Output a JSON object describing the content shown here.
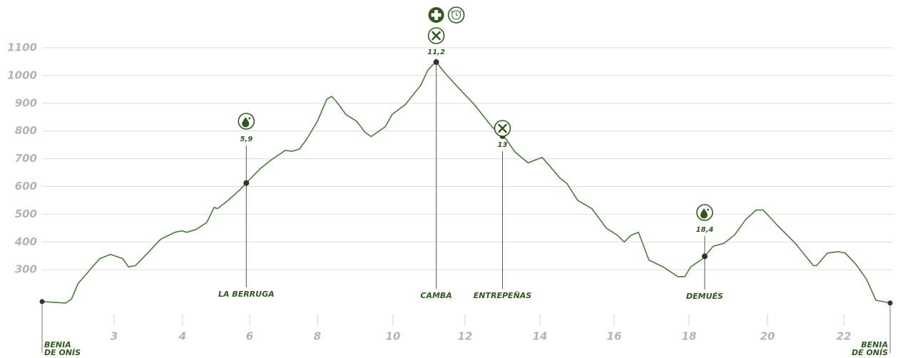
{
  "chart_data": {
    "type": "line",
    "color": "#4d7a3e",
    "x": [
      2.0,
      2.33,
      2.41,
      2.5,
      2.8,
      2.95,
      3.125,
      3.21,
      3.31,
      3.47,
      3.68,
      3.89,
      3.99,
      4.13,
      4.4,
      4.72,
      4.94,
      5.04,
      5.36,
      5.68,
      6.0,
      6.32,
      6.63,
      7.05,
      7.26,
      7.47,
      7.68,
      8.0,
      8.25,
      8.38,
      8.51,
      8.75,
      9.04,
      9.26,
      9.42,
      9.79,
      9.98,
      10.34,
      10.77,
      10.97,
      11.19,
      11.47,
      11.86,
      12.25,
      12.72,
      13.1,
      13.33,
      13.68,
      14.06,
      14.35,
      14.54,
      14.73,
      15.02,
      15.4,
      15.79,
      16.08,
      16.27,
      16.46,
      16.65,
      16.93,
      17.31,
      17.7,
      17.89,
      18.04,
      18.35,
      18.62,
      18.89,
      19.16,
      19.44,
      19.71,
      19.89,
      20.26,
      20.73,
      21.2,
      21.29,
      21.57,
      21.85,
      22.04,
      22.31,
      22.59,
      22.83,
      23.2
    ],
    "values": [
      185,
      180,
      195,
      250,
      340,
      355,
      340,
      310,
      315,
      355,
      410,
      435,
      440,
      435,
      445,
      470,
      525,
      520,
      550,
      585,
      625,
      665,
      695,
      730,
      727,
      735,
      770,
      835,
      915,
      925,
      905,
      860,
      835,
      795,
      780,
      815,
      860,
      895,
      965,
      1020,
      1050,
      1005,
      950,
      895,
      815,
      770,
      725,
      685,
      705,
      660,
      630,
      610,
      550,
      520,
      450,
      425,
      400,
      425,
      435,
      335,
      310,
      275,
      275,
      310,
      340,
      385,
      395,
      425,
      480,
      515,
      515,
      460,
      395,
      315,
      315,
      360,
      365,
      360,
      320,
      265,
      190,
      180
    ],
    "xlim": [
      2,
      23.2
    ],
    "xticks": [
      3,
      4,
      6,
      8,
      10,
      12,
      14,
      16,
      18,
      20,
      22
    ],
    "ylim": [
      100,
      1100
    ],
    "yticks": [
      300,
      400,
      500,
      600,
      700,
      800,
      900,
      1000,
      1100
    ],
    "grid": true,
    "start_label": [
      "BENIA",
      "DE ONÍS"
    ],
    "end_label": [
      "BENIA",
      "DE ONÍS"
    ],
    "markers": [
      {
        "value": 5.9,
        "label": "5,9",
        "place": "LA BERRUGA"
      },
      {
        "value": 11.2,
        "label": "11,2",
        "place": "CAMBA"
      },
      {
        "value": 13,
        "label": "13",
        "place": "ENTREPEÑAS"
      },
      {
        "value": 18.4,
        "label": "18,4",
        "place": "DEMUÉS"
      }
    ]
  }
}
